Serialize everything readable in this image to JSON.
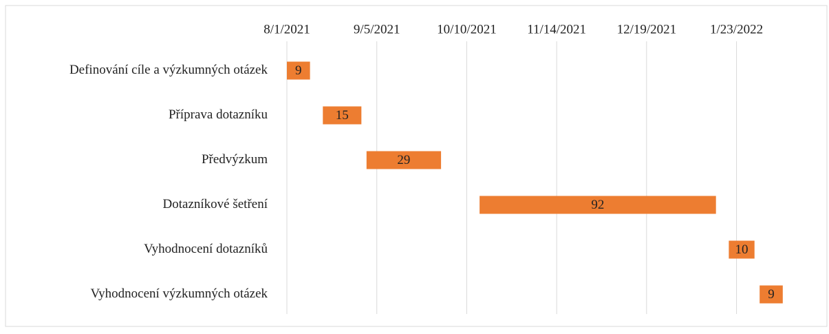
{
  "chart_data": {
    "type": "gantt",
    "categories": [
      "Definování cíle a výzkumných otázek",
      "Příprava dotazníku",
      "Předvýzkum",
      "Dotazníkové šetření",
      "Vyhodnocení dotazníků",
      "Vyhodnocení výzkumných otázek"
    ],
    "starts": [
      "8/1/2021",
      "8/15/2021",
      "9/1/2021",
      "10/15/2021",
      "1/20/2022",
      "2/1/2022"
    ],
    "values": [
      9,
      15,
      29,
      92,
      10,
      9
    ],
    "color": "#ed7d31",
    "xlim": [
      "8/1/2021",
      "2/13/2022"
    ],
    "xticks": [
      "8/1/2021",
      "9/5/2021",
      "10/10/2021",
      "11/14/2021",
      "12/19/2021",
      "1/23/2022"
    ],
    "grid": true
  }
}
